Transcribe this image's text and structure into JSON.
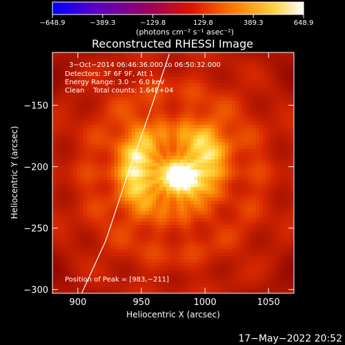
{
  "chart_data": {
    "type": "heatmap",
    "title": "Reconstructed RHESSI Image",
    "xlabel": "Heliocentric X (arcsec)",
    "ylabel": "Heliocentric Y (arcsec)",
    "xlim": [
      880,
      1070
    ],
    "ylim": [
      -303,
      -107
    ],
    "x_ticks": [
      900,
      950,
      1000,
      1050
    ],
    "y_ticks": [
      -150,
      -200,
      -250,
      -300
    ],
    "x_tick_labels": [
      "900",
      "950",
      "1000",
      "1050"
    ],
    "y_tick_labels": [
      "−150",
      "−200",
      "−250",
      "−300"
    ],
    "colorbar": {
      "range": [
        -648.9,
        648.9
      ],
      "ticks": [
        -648.9,
        -389.3,
        -129.8,
        129.8,
        389.3,
        648.9
      ],
      "tick_labels": [
        "−648.9",
        "−389.3",
        "−129.8",
        "129.8",
        "389.3",
        "648.9"
      ],
      "unit_label": "(photons cm⁻² s⁻¹ asec⁻²)",
      "colors": [
        "#0000ff",
        "#5a00c8",
        "#9a0060",
        "#e01000",
        "#ff7a00",
        "#ffd040",
        "#ffffff"
      ]
    },
    "annotations": [
      "3−Oct−2014 06:46:36.000 to 06:50:32.000",
      "Detectors: 3F 6F 9F, Att 1",
      "Energy Range: 3.0 − 6.0 keV",
      "Clean    Total counts: 1.64E+04"
    ],
    "peak_label": "Position of Peak = [983,−211]",
    "peak": [
      983,
      -211
    ],
    "sources": [
      {
        "x": 983,
        "y": -211,
        "sx": 12,
        "sy": 11,
        "amp": 1.0
      },
      {
        "x": 948,
        "y": -200,
        "sx": 13,
        "sy": 25,
        "amp": 0.7
      },
      {
        "x": 1000,
        "y": -185,
        "sx": 15,
        "sy": 18,
        "amp": 0.6
      }
    ],
    "limb_points": [
      [
        903,
        -303
      ],
      [
        922,
        -260
      ],
      [
        938,
        -210
      ],
      [
        955,
        -160
      ],
      [
        972,
        -108
      ]
    ]
  },
  "footer": {
    "date": "17−May−2022 20:52"
  }
}
